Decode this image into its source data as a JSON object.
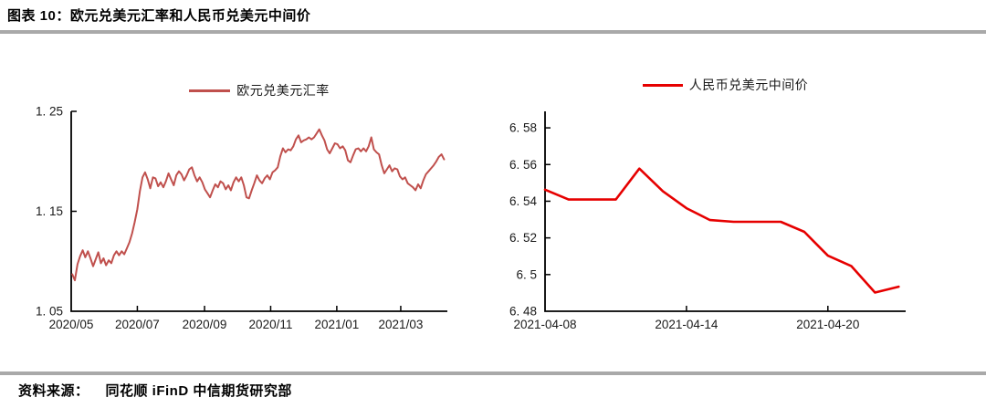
{
  "page": {
    "title": "图表 10：欧元兑美元汇率和人民币兑美元中间价",
    "source_label": "资料来源：",
    "source_text": "同花顺 iFinD 中信期货研究部"
  },
  "colors": {
    "eur_line": "#C0504D",
    "cny_line": "#E60000",
    "axis": "#000000",
    "rule": "#A9A9A9"
  },
  "chart_data": [
    {
      "type": "line",
      "legend": "欧元兑美元汇率",
      "legend_position": "top",
      "color_key": "eur_line",
      "grid": false,
      "ylim": [
        1.05,
        1.25
      ],
      "y_ticks": [
        {
          "label": "1. 05",
          "value": 1.05
        },
        {
          "label": "1. 15",
          "value": 1.15
        },
        {
          "label": "1. 25",
          "value": 1.25
        }
      ],
      "x_domain_days": 347,
      "x_start_date": "2020-05-01",
      "x_ticks": [
        {
          "label": "2020/05",
          "day": 0
        },
        {
          "label": "2020/07",
          "day": 61
        },
        {
          "label": "2020/09",
          "day": 123
        },
        {
          "label": "2020/11",
          "day": 184
        },
        {
          "label": "2021/01",
          "day": 245
        },
        {
          "label": "2021/03",
          "day": 304
        }
      ],
      "series": [
        {
          "name": "欧元兑美元汇率",
          "start_day": 1,
          "end_day": 344,
          "values": [
            1.087,
            1.081,
            1.097,
            1.105,
            1.111,
            1.104,
            1.11,
            1.103,
            1.095,
            1.102,
            1.109,
            1.098,
            1.103,
            1.096,
            1.101,
            1.098,
            1.106,
            1.11,
            1.106,
            1.11,
            1.107,
            1.113,
            1.119,
            1.128,
            1.139,
            1.152,
            1.17,
            1.184,
            1.189,
            1.182,
            1.173,
            1.184,
            1.183,
            1.175,
            1.179,
            1.174,
            1.18,
            1.188,
            1.182,
            1.176,
            1.186,
            1.19,
            1.187,
            1.181,
            1.186,
            1.192,
            1.194,
            1.186,
            1.18,
            1.184,
            1.179,
            1.172,
            1.168,
            1.164,
            1.171,
            1.177,
            1.174,
            1.18,
            1.178,
            1.172,
            1.176,
            1.171,
            1.179,
            1.184,
            1.18,
            1.184,
            1.176,
            1.164,
            1.163,
            1.171,
            1.178,
            1.186,
            1.181,
            1.178,
            1.183,
            1.186,
            1.182,
            1.189,
            1.191,
            1.194,
            1.205,
            1.213,
            1.209,
            1.212,
            1.211,
            1.215,
            1.222,
            1.226,
            1.219,
            1.221,
            1.222,
            1.224,
            1.222,
            1.224,
            1.228,
            1.232,
            1.226,
            1.221,
            1.212,
            1.208,
            1.213,
            1.218,
            1.217,
            1.213,
            1.215,
            1.211,
            1.201,
            1.199,
            1.206,
            1.212,
            1.213,
            1.21,
            1.213,
            1.21,
            1.215,
            1.224,
            1.212,
            1.209,
            1.207,
            1.196,
            1.188,
            1.192,
            1.196,
            1.19,
            1.193,
            1.192,
            1.185,
            1.182,
            1.184,
            1.178,
            1.176,
            1.174,
            1.171,
            1.177,
            1.173,
            1.181,
            1.187,
            1.19,
            1.193,
            1.196,
            1.2,
            1.2045,
            1.207,
            1.202
          ]
        }
      ]
    },
    {
      "type": "line",
      "legend": "人民币兑美元中间价",
      "legend_position": "top",
      "color_key": "cny_line",
      "grid": false,
      "ylim": [
        6.48,
        6.589
      ],
      "y_ticks": [
        {
          "label": "6. 48",
          "value": 6.48
        },
        {
          "label": "6. 5",
          "value": 6.5
        },
        {
          "label": "6. 52",
          "value": 6.52
        },
        {
          "label": "6. 54",
          "value": 6.54
        },
        {
          "label": "6. 56",
          "value": 6.56
        },
        {
          "label": "6. 58",
          "value": 6.58
        }
      ],
      "x_domain_days": 15.3,
      "x_start_date": "2021-04-08",
      "x_ticks": [
        {
          "label": "2021-04-08",
          "day": 0
        },
        {
          "label": "2021-04-14",
          "day": 6
        },
        {
          "label": "2021-04-20",
          "day": 12
        }
      ],
      "series": [
        {
          "name": "人民币兑美元中间价",
          "points": [
            {
              "date": "2021-04-08",
              "day": 0,
              "value": 6.5463
            },
            {
              "date": "2021-04-09",
              "day": 1,
              "value": 6.5409
            },
            {
              "date": "2021-04-10",
              "day": 2,
              "value": 6.5409
            },
            {
              "date": "2021-04-11",
              "day": 3,
              "value": 6.5409
            },
            {
              "date": "2021-04-12",
              "day": 4,
              "value": 6.5578
            },
            {
              "date": "2021-04-13",
              "day": 5,
              "value": 6.5454
            },
            {
              "date": "2021-04-14",
              "day": 6,
              "value": 6.5362
            },
            {
              "date": "2021-04-15",
              "day": 7,
              "value": 6.5297
            },
            {
              "date": "2021-04-16",
              "day": 8,
              "value": 6.5288
            },
            {
              "date": "2021-04-17",
              "day": 9,
              "value": 6.5288
            },
            {
              "date": "2021-04-18",
              "day": 10,
              "value": 6.5288
            },
            {
              "date": "2021-04-19",
              "day": 11,
              "value": 6.5233
            },
            {
              "date": "2021-04-20",
              "day": 12,
              "value": 6.5103
            },
            {
              "date": "2021-04-21",
              "day": 13,
              "value": 6.5046
            },
            {
              "date": "2021-04-22",
              "day": 14,
              "value": 6.4902
            },
            {
              "date": "2021-04-23",
              "day": 15,
              "value": 6.4934
            }
          ]
        }
      ]
    }
  ]
}
